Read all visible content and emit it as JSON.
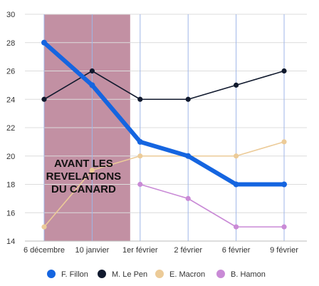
{
  "chart_data": {
    "type": "line",
    "categories": [
      "6 décembre",
      "10 janvier",
      "1er février",
      "2 février",
      "6 février",
      "9 février"
    ],
    "ylim": [
      14,
      30
    ],
    "yticks": [
      14,
      16,
      18,
      20,
      22,
      24,
      26,
      28,
      30
    ],
    "grid": true,
    "legend_position": "bottom",
    "series": [
      {
        "name": "F. Fillon",
        "color": "#1565e0",
        "values": [
          28,
          25,
          21,
          20,
          18,
          18
        ],
        "bold": true
      },
      {
        "name": "M. Le Pen",
        "color": "#111a2e",
        "values": [
          24,
          26,
          24,
          24,
          25,
          26
        ]
      },
      {
        "name": "E. Macron",
        "color": "#eccb98",
        "values": [
          15,
          19,
          20,
          20,
          20,
          21
        ]
      },
      {
        "name": "B. Hamon",
        "color": "#c98ad6",
        "values": [
          null,
          null,
          18,
          17,
          15,
          15
        ]
      }
    ],
    "shaded_region": {
      "from": "6 décembre",
      "to": "1er février",
      "color": "#c290a3"
    },
    "annotation": {
      "lines": [
        "AVANT LES",
        "REVELATIONS",
        "DU CANARD"
      ]
    }
  }
}
